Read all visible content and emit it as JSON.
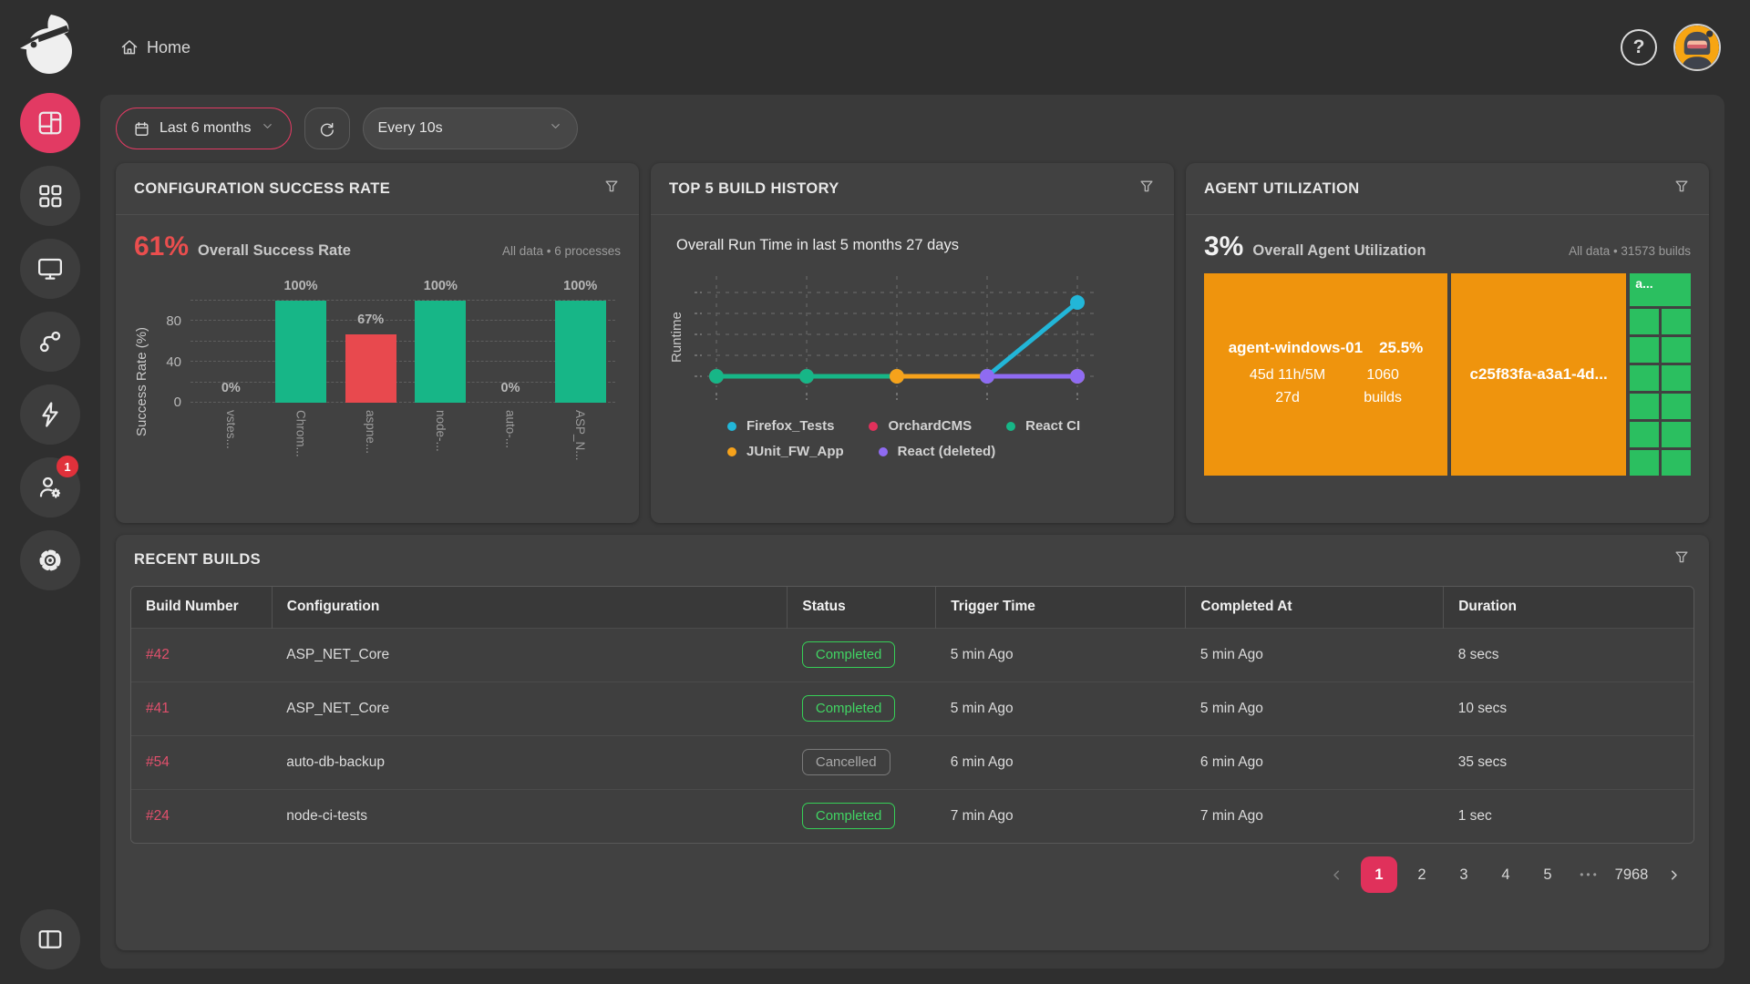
{
  "colors": {
    "accent_pink": "#e23a63",
    "pagination_active": "#e0315b",
    "stat_red": "#ea4e4e",
    "bar_green": "#17b687",
    "bar_red": "#e8494e",
    "badge_green": "#36cf57",
    "treemap_orange": "#ef940d",
    "treemap_green": "#2bbf60",
    "series_cyan": "#22b6d8",
    "series_purple": "#8f6bf2",
    "series_orange": "#f6a21b",
    "series_pink": "#e0315b"
  },
  "topbar": {
    "breadcrumb": "Home",
    "help_label": "?"
  },
  "sidebar": {
    "items": [
      "dashboard",
      "apps-grid",
      "monitor",
      "git-branch",
      "lightning",
      "user-settings",
      "settings"
    ],
    "active_item": "dashboard",
    "user_badge_count": "1"
  },
  "filters": {
    "date_range": "Last 6 months",
    "refresh_interval": "Every 10s"
  },
  "cards": {
    "success_rate": {
      "title": "CONFIGURATION SUCCESS RATE",
      "stat_value": "61%",
      "stat_label": "Overall Success Rate",
      "meta": "All data • 6 processes",
      "ylabel": "Success Rate (%)",
      "yticks": {
        "t80": "80",
        "t40": "40",
        "t0": "0"
      },
      "chart": {
        "type": "bar",
        "categories": [
          "vstes...",
          "Chrom...",
          "aspne...",
          "node-...",
          "auto-...",
          "ASP_N..."
        ],
        "values": [
          0,
          100,
          67,
          100,
          0,
          100
        ],
        "value_labels": [
          "0%",
          "100%",
          "67%",
          "100%",
          "0%",
          "100%"
        ],
        "colors": [
          "#17b687",
          "#17b687",
          "#e8494e",
          "#17b687",
          "#17b687",
          "#17b687"
        ],
        "ylim": [
          0,
          100
        ]
      }
    },
    "build_history": {
      "title": "TOP 5 BUILD HISTORY",
      "subtitle": "Overall Run Time in last 5 months 27 days",
      "ylabel": "Runtime",
      "chart": {
        "type": "line",
        "x": [
          1,
          2,
          3,
          4,
          5
        ],
        "series": [
          {
            "name": "OrchardCMS",
            "color": "#e0315b",
            "values": [
              0,
              0,
              0,
              0,
              0
            ]
          },
          {
            "name": "React CI",
            "color": "#17b687",
            "values": [
              0,
              0,
              0,
              0,
              0
            ]
          },
          {
            "name": "JUnit_FW_App",
            "color": "#f6a21b",
            "values": [
              null,
              null,
              0,
              0,
              0
            ]
          },
          {
            "name": "Firefox_Tests",
            "color": "#22b6d8",
            "values": [
              null,
              null,
              null,
              0,
              3
            ]
          },
          {
            "name": "React (deleted)",
            "color": "#8f6bf2",
            "values": [
              null,
              null,
              null,
              0,
              0
            ]
          }
        ]
      },
      "legend": [
        {
          "label": "Firefox_Tests",
          "color": "#22b6d8"
        },
        {
          "label": "OrchardCMS",
          "color": "#e0315b"
        },
        {
          "label": "React CI",
          "color": "#17b687"
        },
        {
          "label": "JUnit_FW_App",
          "color": "#f6a21b"
        },
        {
          "label": "React (deleted)",
          "color": "#8f6bf2"
        }
      ]
    },
    "agent_utilization": {
      "title": "AGENT UTILIZATION",
      "stat_value": "3%",
      "stat_label": "Overall Agent Utilization",
      "meta": "All data • 31573 builds",
      "treemap": {
        "type": "treemap",
        "cell_color": "#2bbf60",
        "blocks": [
          {
            "name": "agent-windows-01",
            "percent": "25.5%",
            "runtime_line1": "45d 11h/5M",
            "runtime_line2": "27d",
            "builds_line1": "1060",
            "builds_line2": "builds",
            "color": "#ef940d"
          },
          {
            "name": "c25f83fa-a3a1-4d...",
            "color": "#ef940d"
          },
          {
            "name": "a...",
            "color": "#2bbf60"
          }
        ]
      }
    }
  },
  "recent_builds": {
    "title": "RECENT BUILDS",
    "columns": [
      "Build Number",
      "Configuration",
      "Status",
      "Trigger Time",
      "Completed At",
      "Duration"
    ],
    "rows": [
      {
        "build": "#42",
        "configuration": "ASP_NET_Core",
        "status": "Completed",
        "status_variant": "completed",
        "trigger": "5 min Ago",
        "completed": "5 min Ago",
        "duration": "8 secs"
      },
      {
        "build": "#41",
        "configuration": "ASP_NET_Core",
        "status": "Completed",
        "status_variant": "completed",
        "trigger": "5 min Ago",
        "completed": "5 min Ago",
        "duration": "10 secs"
      },
      {
        "build": "#54",
        "configuration": "auto-db-backup",
        "status": "Cancelled",
        "status_variant": "cancelled",
        "trigger": "6 min Ago",
        "completed": "6 min Ago",
        "duration": "35 secs"
      },
      {
        "build": "#24",
        "configuration": "node-ci-tests",
        "status": "Completed",
        "status_variant": "completed",
        "trigger": "7 min Ago",
        "completed": "7 min Ago",
        "duration": "1 sec"
      }
    ],
    "pagination": {
      "pages": [
        "1",
        "2",
        "3",
        "4",
        "5",
        "•••",
        "7968"
      ],
      "active": "1"
    }
  },
  "chart_data": [
    {
      "type": "bar",
      "title": "CONFIGURATION SUCCESS RATE",
      "categories": [
        "vstes...",
        "Chrom...",
        "aspne...",
        "node-...",
        "auto-...",
        "ASP_N..."
      ],
      "values": [
        0,
        100,
        67,
        100,
        0,
        100
      ],
      "ylabel": "Success Rate (%)",
      "ylim": [
        0,
        100
      ]
    },
    {
      "type": "line",
      "title": "TOP 5 BUILD HISTORY",
      "ylabel": "Runtime",
      "x": [
        1,
        2,
        3,
        4,
        5
      ],
      "series": [
        {
          "name": "Firefox_Tests",
          "values": [
            null,
            null,
            null,
            0,
            3
          ]
        },
        {
          "name": "OrchardCMS",
          "values": [
            0,
            0,
            0,
            0,
            0
          ]
        },
        {
          "name": "React CI",
          "values": [
            0,
            0,
            0,
            0,
            0
          ]
        },
        {
          "name": "JUnit_FW_App",
          "values": [
            null,
            null,
            0,
            0,
            0
          ]
        },
        {
          "name": "React (deleted)",
          "values": [
            null,
            null,
            null,
            0,
            0
          ]
        }
      ],
      "legend_position": "bottom"
    },
    {
      "type": "treemap",
      "title": "AGENT UTILIZATION",
      "blocks": [
        {
          "name": "agent-windows-01",
          "share": "25.5%",
          "builds": 1060
        },
        {
          "name": "c25f83fa-a3a1-4d...",
          "share": null
        },
        {
          "name": "a...",
          "share": null
        }
      ]
    }
  ]
}
